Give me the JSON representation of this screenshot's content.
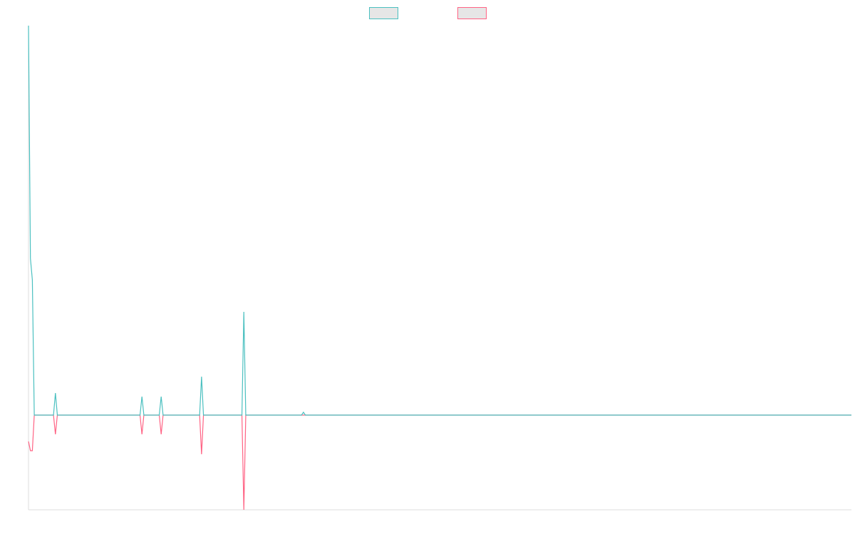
{
  "chart_data": {
    "type": "line",
    "x": [
      0,
      1,
      2,
      3,
      13,
      14,
      15,
      58,
      59,
      60,
      68,
      69,
      70,
      89,
      90,
      91,
      111,
      112,
      113,
      142,
      143,
      144,
      428
    ],
    "series": [
      {
        "color": "#4bc0c0",
        "values": [
          5.47,
          2.2,
          1.9,
          0,
          0,
          0.31,
          0,
          0,
          0.26,
          0,
          0,
          0.26,
          0,
          0,
          0.54,
          0,
          0,
          1.45,
          0,
          0,
          0.04,
          0,
          0
        ]
      },
      {
        "color": "#ff6384",
        "values": [
          -0.37,
          -0.5,
          -0.5,
          0,
          0,
          -0.27,
          0,
          0,
          -0.27,
          0,
          0,
          -0.27,
          0,
          0,
          -0.55,
          0,
          0,
          -1.33,
          0,
          0,
          0,
          0,
          0
        ]
      }
    ],
    "xlim": [
      0,
      428
    ],
    "ylim": [
      -1.33,
      5.47
    ]
  }
}
